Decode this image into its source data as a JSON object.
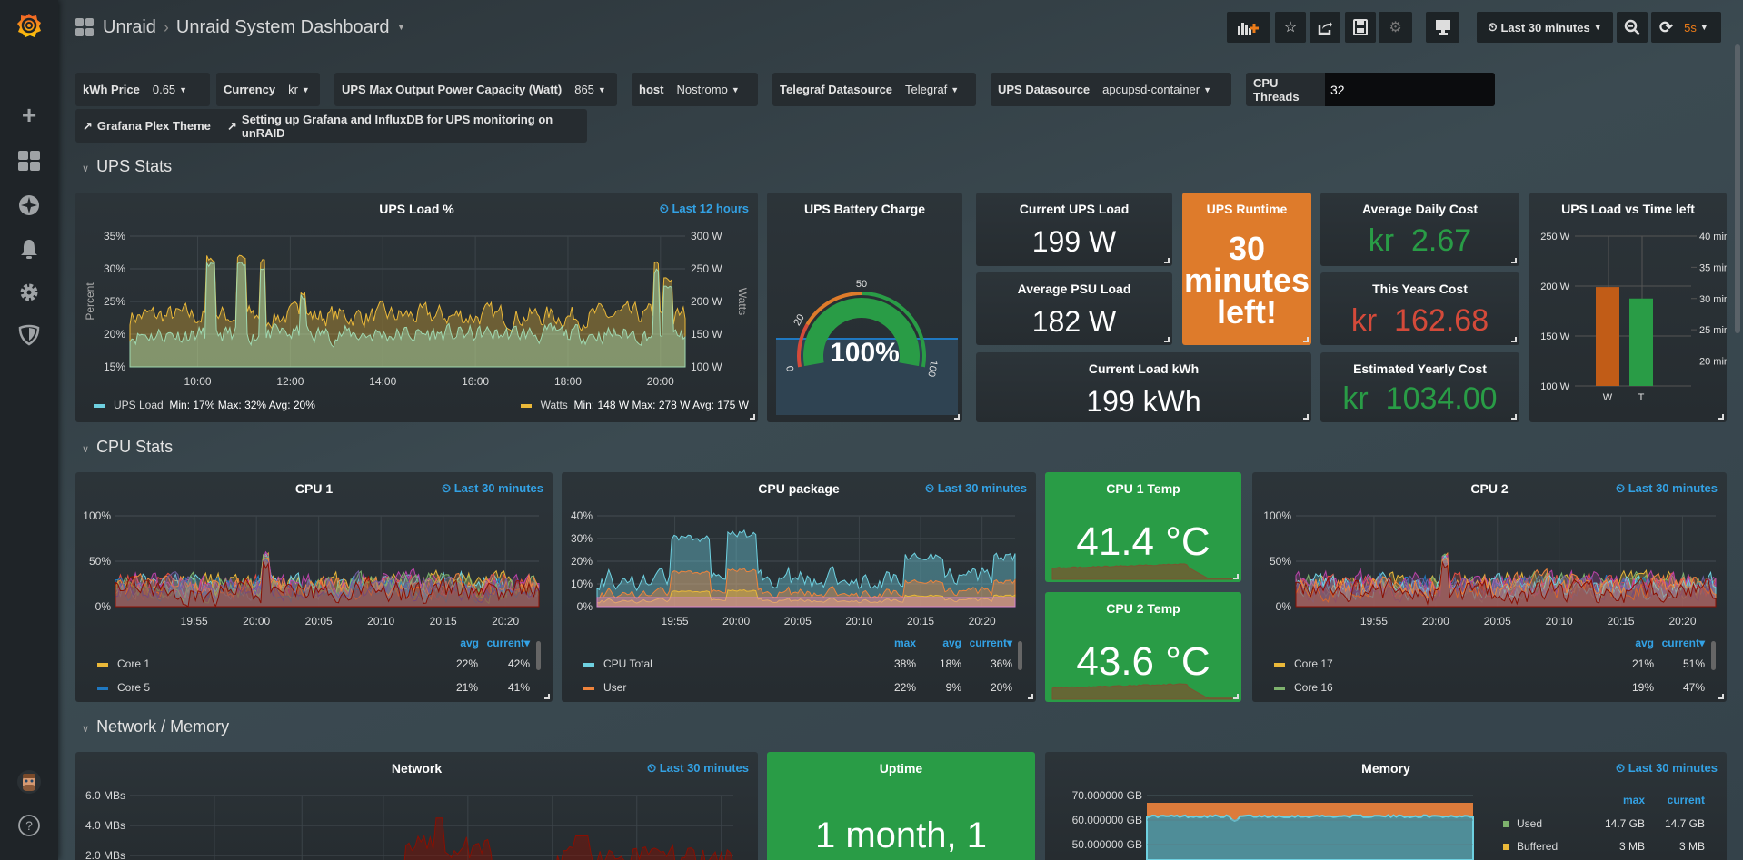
{
  "header": {
    "folder": "Unraid",
    "separator": "›",
    "title": "Unraid System Dashboard",
    "time_range": "Last 30 minutes",
    "refresh_interval": "5s"
  },
  "sidebar": {
    "icons": [
      "grafana-logo",
      "plus-icon",
      "dashboards-icon",
      "explore-icon",
      "alerting-icon",
      "configuration-icon",
      "server-admin-icon",
      "avatar",
      "help-icon"
    ]
  },
  "toolbar": {
    "icons": [
      "add-panel-icon",
      "star-icon",
      "share-icon",
      "save-icon",
      "settings-icon",
      "tv-mode-icon",
      "clock-icon",
      "zoom-out-icon",
      "refresh-icon"
    ]
  },
  "variables": [
    {
      "label": "kWh Price",
      "value": "0.65"
    },
    {
      "label": "Currency",
      "value": "kr"
    },
    {
      "label": "UPS Max Output Power Capacity (Watt)",
      "value": "865"
    },
    {
      "label": "host",
      "value": "Nostromo"
    },
    {
      "label": "Telegraf Datasource",
      "value": "Telegraf"
    },
    {
      "label": "UPS Datasource",
      "value": "apcupsd-container"
    },
    {
      "label": "CPU Threads",
      "value": "32"
    }
  ],
  "links": [
    "Grafana Plex Theme",
    "Setting up Grafana and InfluxDB for UPS monitoring on unRAID"
  ],
  "rows": [
    "UPS Stats",
    "CPU Stats",
    "Network / Memory"
  ],
  "colors": {
    "green": "#299c46",
    "orange": "#de7b2b",
    "red": "#d44a3a",
    "link": "#33a2e5",
    "yellow": "#eab839"
  },
  "ups_load": {
    "title": "UPS Load %",
    "time": "Last 12 hours",
    "y_left_label": "Percent",
    "y_right_label": "Watts",
    "y_left_ticks": [
      "35%",
      "30%",
      "25%",
      "20%",
      "15%"
    ],
    "y_right_ticks": [
      "300 W",
      "250 W",
      "200 W",
      "150 W",
      "100 W"
    ],
    "x_ticks": [
      "10:00",
      "12:00",
      "14:00",
      "16:00",
      "18:00",
      "20:00"
    ],
    "legend": [
      {
        "name": "UPS Load",
        "stats": "Min: 17%  Max: 32%  Avg: 20%",
        "color": "#6ed0e0"
      },
      {
        "name": "Watts",
        "stats": "Min: 148 W  Max: 278 W  Avg: 175 W",
        "color": "#eab839"
      }
    ]
  },
  "battery": {
    "title": "UPS Battery Charge",
    "value": "100%",
    "percent": 100,
    "ticks": [
      "0",
      "20",
      "50",
      "100"
    ],
    "thresholds": [
      20,
      50
    ]
  },
  "stats": {
    "current_ups_load": {
      "title": "Current UPS Load",
      "value": "199 W"
    },
    "avg_psu_load": {
      "title": "Average PSU Load",
      "value": "182 W"
    },
    "current_load_kwh": {
      "title": "Current Load kWh",
      "value": "199 kWh"
    },
    "ups_runtime": {
      "title": "UPS Runtime",
      "value_line1": "30",
      "value_line2": "minutes",
      "value_line3": "left!"
    },
    "avg_daily_cost": {
      "title": "Average Daily Cost",
      "prefix": "kr",
      "value": "2.67",
      "color": "#299c46"
    },
    "this_years_cost": {
      "title": "This Years Cost",
      "prefix": "kr",
      "value": "162.68",
      "color": "#d44a3a"
    },
    "estimated_yearly_cost": {
      "title": "Estimated Yearly Cost",
      "prefix": "kr",
      "value": "1034.00",
      "color": "#299c46"
    }
  },
  "load_vs_time": {
    "title": "UPS Load vs Time left",
    "y_left_ticks": [
      "250 W",
      "200 W",
      "150 W",
      "100 W"
    ],
    "y_right_ticks": [
      "40 min",
      "35 min",
      "30 min",
      "25 min",
      "20 min"
    ],
    "categories": [
      "W",
      "T"
    ],
    "values": [
      199,
      30
    ],
    "units": [
      "W",
      "min"
    ],
    "y_left_range": [
      100,
      250
    ],
    "y_right_range": [
      16,
      40
    ],
    "bar_colors": [
      "#c15c17",
      "#299c46"
    ]
  },
  "cpu1": {
    "title": "CPU 1",
    "time": "Last 30 minutes",
    "y_ticks": [
      "100%",
      "50%",
      "0%"
    ],
    "x_ticks": [
      "19:55",
      "20:00",
      "20:05",
      "20:10",
      "20:15",
      "20:20"
    ],
    "legend_headers": [
      "avg",
      "current▾"
    ],
    "legend": [
      {
        "name": "Core 1",
        "avg": "22%",
        "current": "42%",
        "color": "#eab839"
      },
      {
        "name": "Core 5",
        "avg": "21%",
        "current": "41%",
        "color": "#1f78c1"
      }
    ]
  },
  "cpu_package": {
    "title": "CPU package",
    "time": "Last 30 minutes",
    "y_ticks": [
      "40%",
      "30%",
      "20%",
      "10%",
      "0%"
    ],
    "x_ticks": [
      "19:55",
      "20:00",
      "20:05",
      "20:10",
      "20:15",
      "20:20"
    ],
    "legend_headers": [
      "max",
      "avg",
      "current▾"
    ],
    "legend": [
      {
        "name": "CPU Total",
        "max": "38%",
        "avg": "18%",
        "current": "36%",
        "color": "#6ed0e0"
      },
      {
        "name": "User",
        "max": "22%",
        "avg": "9%",
        "current": "20%",
        "color": "#ef843c"
      }
    ]
  },
  "cpu1_temp": {
    "title": "CPU 1 Temp",
    "value": "41.4 °C"
  },
  "cpu2_temp": {
    "title": "CPU 2 Temp",
    "value": "43.6 °C"
  },
  "cpu2": {
    "title": "CPU 2",
    "time": "Last 30 minutes",
    "y_ticks": [
      "100%",
      "50%",
      "0%"
    ],
    "x_ticks": [
      "19:55",
      "20:00",
      "20:05",
      "20:10",
      "20:15",
      "20:20"
    ],
    "legend_headers": [
      "avg",
      "current▾"
    ],
    "legend": [
      {
        "name": "Core 17",
        "avg": "21%",
        "current": "51%",
        "color": "#eab839"
      },
      {
        "name": "Core 16",
        "avg": "19%",
        "current": "47%",
        "color": "#7eb26d"
      }
    ]
  },
  "network": {
    "title": "Network",
    "time": "Last 30 minutes",
    "y_ticks": [
      "6.0 MBs",
      "4.0 MBs",
      "2.0 MBs"
    ]
  },
  "uptime": {
    "title": "Uptime",
    "value": "1 month, 1"
  },
  "memory": {
    "title": "Memory",
    "time": "Last 30 minutes",
    "y_ticks": [
      "70.000000 GB",
      "60.000000 GB",
      "50.000000 GB"
    ],
    "legend_headers": [
      "max",
      "current"
    ],
    "legend": [
      {
        "name": "Used",
        "max": "14.7 GB",
        "current": "14.7 GB",
        "color": "#7eb26d"
      },
      {
        "name": "Buffered",
        "max": "3 MB",
        "current": "3 MB",
        "color": "#eab839"
      }
    ]
  }
}
